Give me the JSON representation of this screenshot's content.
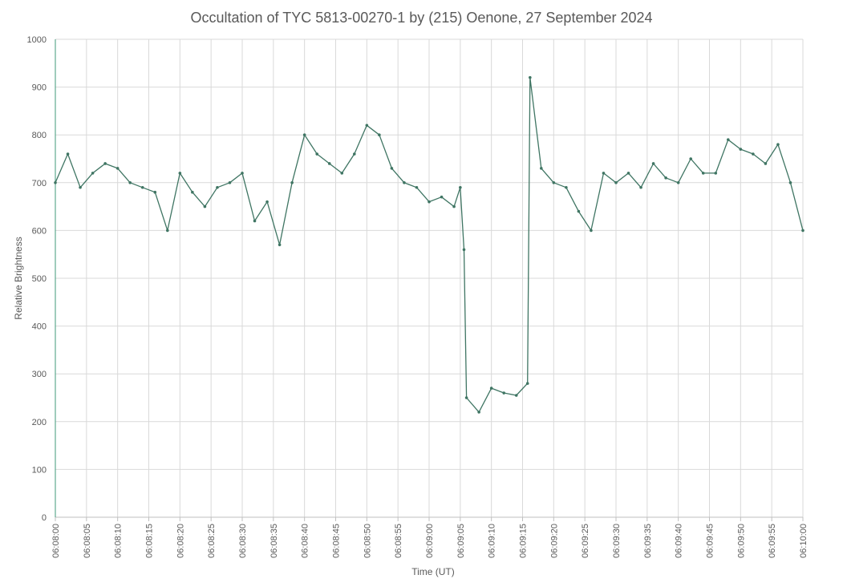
{
  "chart_data": {
    "type": "line",
    "title": "Occultation of TYC 5813-00270-1 by (215) Oenone, 27 September 2024",
    "xlabel": "Time (UT)",
    "ylabel": "Relative Brightness",
    "ylim": [
      0,
      1000
    ],
    "xlim": [
      "06:08:00",
      "06:10:00"
    ],
    "grid": true,
    "y_ticks": [
      0,
      100,
      200,
      300,
      400,
      500,
      600,
      700,
      800,
      900,
      1000
    ],
    "x_tick_labels": [
      "06:08:00",
      "06:08:05",
      "06:08:10",
      "06:08:15",
      "06:08:20",
      "06:08:25",
      "06:08:30",
      "06:08:35",
      "06:08:40",
      "06:08:45",
      "06:08:50",
      "06:08:55",
      "06:09:00",
      "06:09:05",
      "06:09:10",
      "06:09:15",
      "06:09:20",
      "06:09:25",
      "06:09:30",
      "06:09:35",
      "06:09:40",
      "06:09:45",
      "06:09:50",
      "06:09:55",
      "06:10:00"
    ],
    "series_color": "#3f7563",
    "sampling": "approximate envelope values read from the plot",
    "x_seconds": [
      0,
      2,
      4,
      6,
      8,
      10,
      12,
      14,
      16,
      18,
      20,
      22,
      24,
      26,
      28,
      30,
      32,
      34,
      36,
      38,
      40,
      42,
      44,
      46,
      48,
      50,
      52,
      54,
      56,
      58,
      60,
      62,
      64,
      65,
      65.6,
      66,
      68,
      70,
      72,
      74,
      75.8,
      76.2,
      78,
      80,
      82,
      84,
      86,
      88,
      90,
      92,
      94,
      96,
      98,
      100,
      102,
      104,
      106,
      108,
      110,
      112,
      114,
      116,
      118,
      120
    ],
    "y_values": [
      700,
      760,
      690,
      720,
      740,
      730,
      700,
      690,
      680,
      600,
      720,
      680,
      650,
      690,
      700,
      720,
      620,
      660,
      570,
      700,
      800,
      760,
      740,
      720,
      760,
      820,
      800,
      730,
      700,
      690,
      660,
      670,
      650,
      690,
      560,
      250,
      220,
      270,
      260,
      255,
      280,
      920,
      730,
      700,
      690,
      640,
      600,
      720,
      700,
      720,
      690,
      740,
      710,
      700,
      750,
      720,
      720,
      790,
      770,
      760,
      740,
      780,
      700,
      600
    ]
  }
}
